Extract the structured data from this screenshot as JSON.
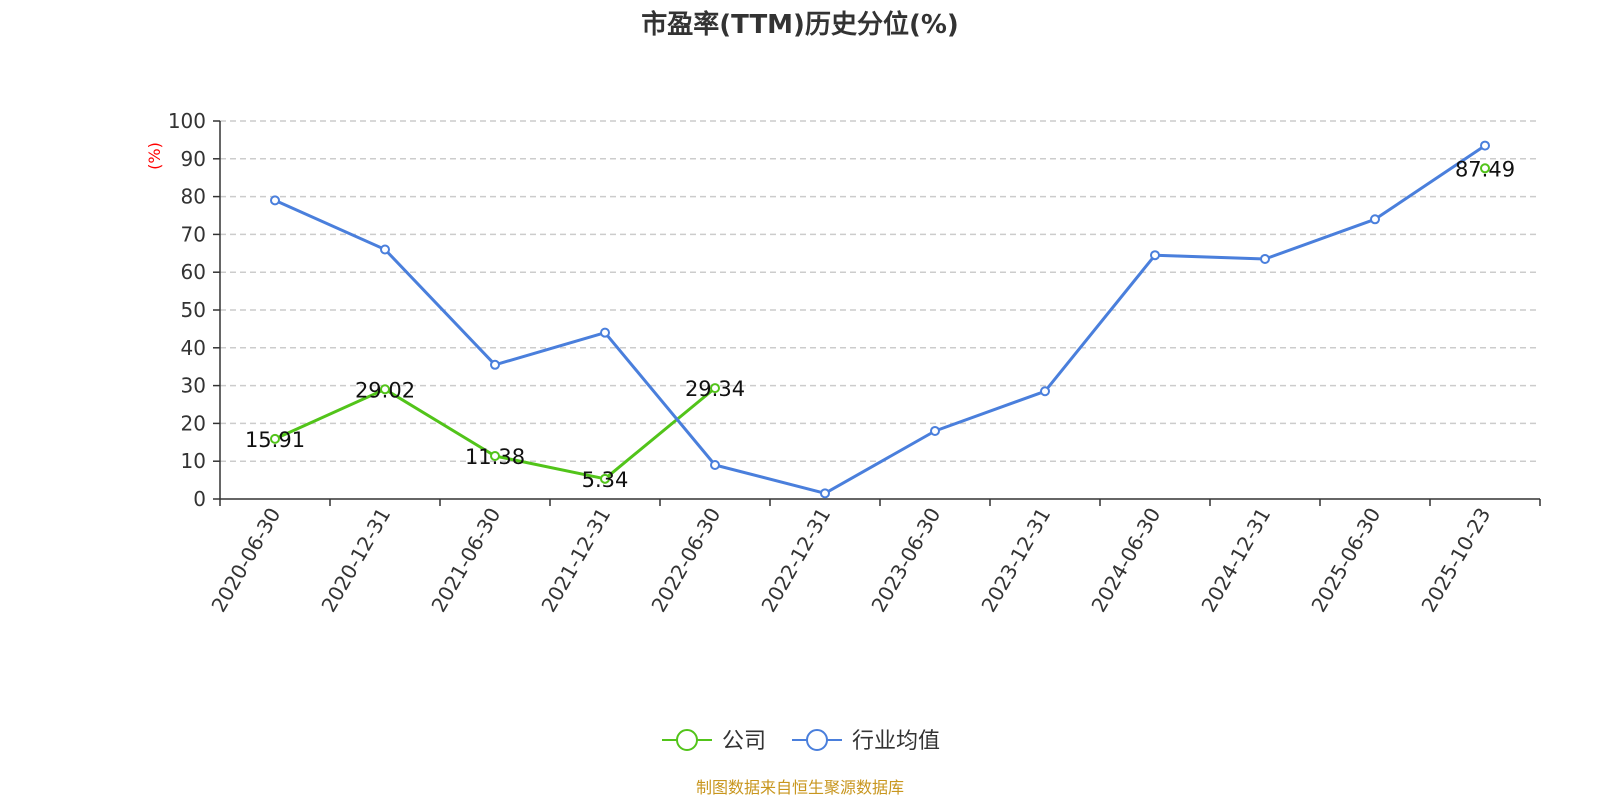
{
  "chart_data": {
    "type": "line",
    "title": "市盈率(TTM)历史分位(%)",
    "ylabel": "(%)",
    "xlabel": "",
    "ylim": [
      0,
      100
    ],
    "yticks": [
      0,
      10,
      20,
      30,
      40,
      50,
      60,
      70,
      80,
      90,
      100
    ],
    "grid": true,
    "legend_position": "bottom-center",
    "categories": [
      "2020-06-30",
      "2020-12-31",
      "2021-06-30",
      "2021-12-31",
      "2022-06-30",
      "2022-12-31",
      "2023-06-30",
      "2023-12-31",
      "2024-06-30",
      "2024-12-31",
      "2025-06-30",
      "2025-10-23"
    ],
    "series": [
      {
        "name": "公司",
        "color": "#52c41a",
        "values": [
          15.91,
          29.02,
          11.38,
          5.34,
          29.34,
          null,
          null,
          null,
          null,
          null,
          null,
          87.49
        ],
        "data_labels": [
          "15.91",
          "29.02",
          "11.38",
          "5.34",
          "29.34",
          null,
          null,
          null,
          null,
          null,
          null,
          "87.49"
        ]
      },
      {
        "name": "行业均值",
        "color": "#4a7fdc",
        "values": [
          79,
          66,
          35.5,
          44,
          9,
          1.5,
          18,
          28.5,
          64.5,
          63.5,
          74,
          93.5
        ]
      }
    ]
  },
  "source_note": "制图数据来自恒生聚源数据库",
  "colors": {
    "axis": "#333333",
    "grid": "#cccccc",
    "title": "#333333",
    "ylabel": "#ff0000",
    "source": "#c8961e"
  }
}
